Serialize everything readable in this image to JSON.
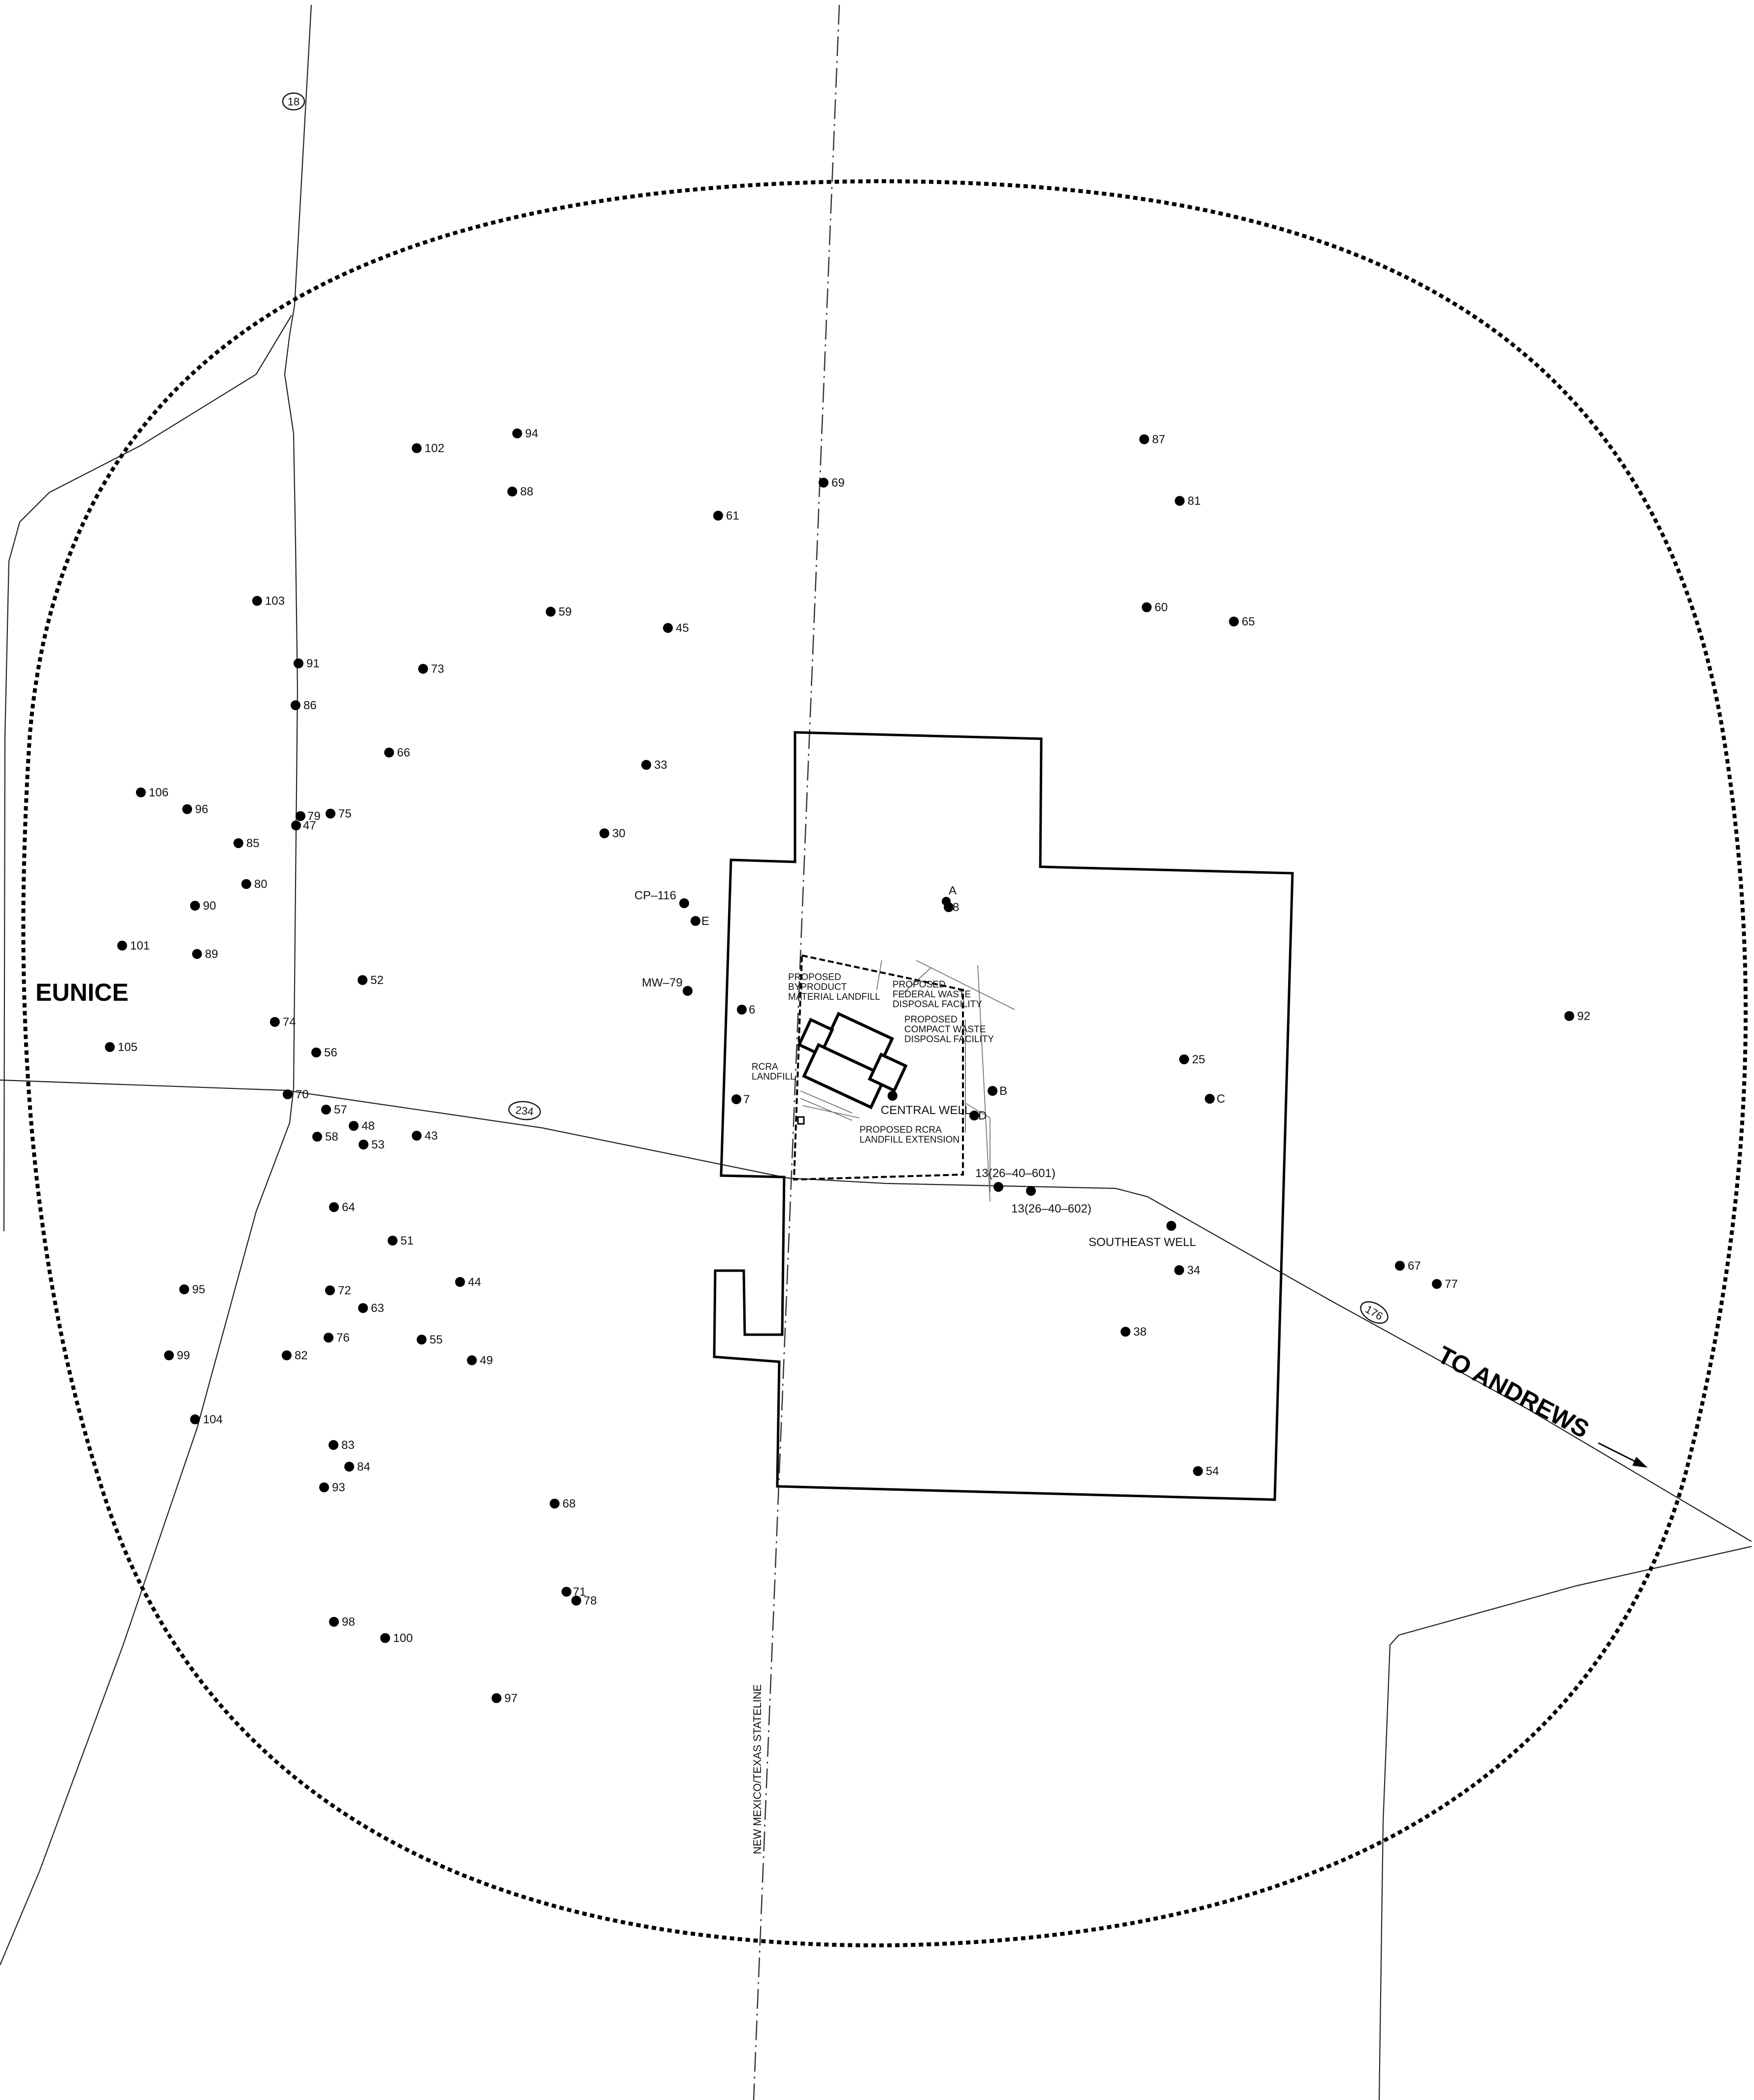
{
  "place_labels": {
    "eunice": "EUNICE",
    "to_andrews": "TO ANDREWS"
  },
  "routes": [
    {
      "id": "route-18",
      "label": "18"
    },
    {
      "id": "route-234",
      "label": "234"
    },
    {
      "id": "route-176",
      "label": "176"
    }
  ],
  "stateline_label": "NEW MEXICO/TEXAS STATELINE",
  "facility_labels": {
    "byproduct": [
      "PROPOSED",
      "BYPRODUCT",
      "MATERIAL LANDFILL"
    ],
    "federal": [
      "PROPOSED",
      "FEDERAL WASTE",
      "DISPOSAL FACILITY"
    ],
    "compact": [
      "PROPOSED",
      "COMPACT WASTE",
      "DISPOSAL FACILITY"
    ],
    "rcra": [
      "RCRA",
      "LANDFILL"
    ],
    "rcra_extension": [
      "PROPOSED RCRA",
      "LANDFILL EXTENSION"
    ]
  },
  "wells": [
    {
      "label": "94"
    },
    {
      "label": "102"
    },
    {
      "label": "88"
    },
    {
      "label": "69"
    },
    {
      "label": "61"
    },
    {
      "label": "87"
    },
    {
      "label": "81"
    },
    {
      "label": "103"
    },
    {
      "label": "59"
    },
    {
      "label": "45"
    },
    {
      "label": "60"
    },
    {
      "label": "65"
    },
    {
      "label": "91"
    },
    {
      "label": "73"
    },
    {
      "label": "86"
    },
    {
      "label": "66"
    },
    {
      "label": "33"
    },
    {
      "label": "106"
    },
    {
      "label": "96"
    },
    {
      "label": "79"
    },
    {
      "label": "47"
    },
    {
      "label": "75"
    },
    {
      "label": "85"
    },
    {
      "label": "30"
    },
    {
      "label": "80"
    },
    {
      "label": "90"
    },
    {
      "label": "CP–116"
    },
    {
      "label": "E"
    },
    {
      "label": "A"
    },
    {
      "label": "8"
    },
    {
      "label": "101"
    },
    {
      "label": "89"
    },
    {
      "label": "52"
    },
    {
      "label": "MW–79"
    },
    {
      "label": "6"
    },
    {
      "label": "92"
    },
    {
      "label": "74"
    },
    {
      "label": "105"
    },
    {
      "label": "56"
    },
    {
      "label": "25"
    },
    {
      "label": "70"
    },
    {
      "label": "7"
    },
    {
      "label": "B"
    },
    {
      "label": "C"
    },
    {
      "label": "57"
    },
    {
      "label": "48"
    },
    {
      "label": "58"
    },
    {
      "label": "53"
    },
    {
      "label": "43"
    },
    {
      "label": "CENTRAL WELL"
    },
    {
      "label": "D"
    },
    {
      "label": "13(26–40–601)"
    },
    {
      "label": "13(26–40–602)"
    },
    {
      "label": "64"
    },
    {
      "label": "SOUTHEAST WELL"
    },
    {
      "label": "51"
    },
    {
      "label": "34"
    },
    {
      "label": "44"
    },
    {
      "label": "95"
    },
    {
      "label": "72"
    },
    {
      "label": "67"
    },
    {
      "label": "77"
    },
    {
      "label": "63"
    },
    {
      "label": "76"
    },
    {
      "label": "55"
    },
    {
      "label": "38"
    },
    {
      "label": "99"
    },
    {
      "label": "82"
    },
    {
      "label": "49"
    },
    {
      "label": "104"
    },
    {
      "label": "83"
    },
    {
      "label": "84"
    },
    {
      "label": "93"
    },
    {
      "label": "54"
    },
    {
      "label": "68"
    },
    {
      "label": "71"
    },
    {
      "label": "78"
    },
    {
      "label": "98"
    },
    {
      "label": "100"
    },
    {
      "label": "97"
    }
  ]
}
